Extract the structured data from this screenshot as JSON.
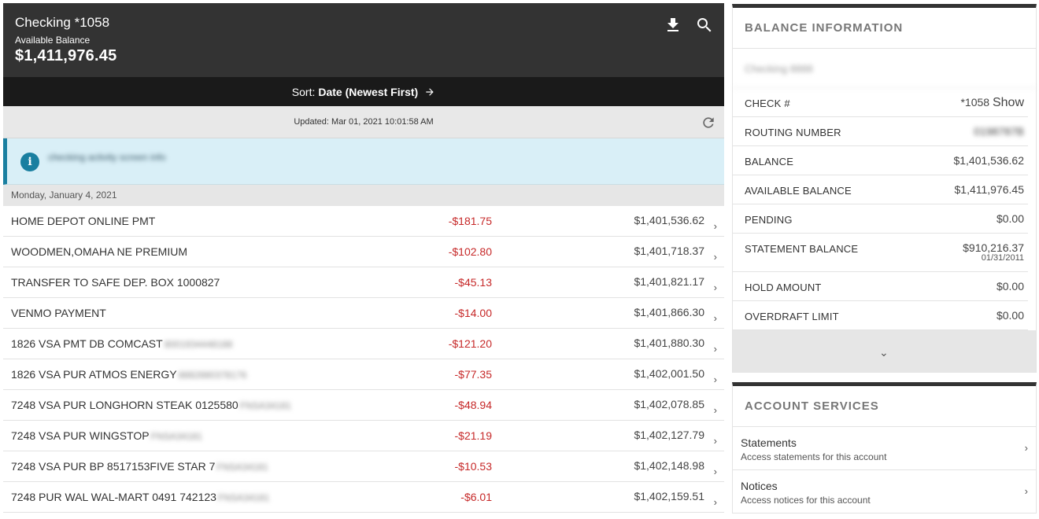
{
  "account": {
    "title": "Checking *1058",
    "available_label": "Available Balance",
    "available_amount": "$1,411,976.45"
  },
  "header_icons": [
    "download-icon",
    "search-icon"
  ],
  "sort": {
    "label": "Sort:",
    "value": "Date (Newest First)",
    "arrow": "→"
  },
  "updated": {
    "text": "Updated: Mar 01, 2021 10:01:58 AM"
  },
  "info_banner": {
    "icon": "i",
    "text": "checking activity screen info"
  },
  "date_group": "Monday, January 4, 2021",
  "transactions": [
    {
      "desc": "HOME DEPOT ONLINE PMT",
      "blur": "",
      "amount": "-$181.75",
      "balance": "$1,401,536.62"
    },
    {
      "desc": "WOODMEN,OMAHA NE PREMIUM",
      "blur": "",
      "amount": "-$102.80",
      "balance": "$1,401,718.37"
    },
    {
      "desc": "TRANSFER TO SAFE DEP. BOX 1000827",
      "blur": "",
      "amount": "-$45.13",
      "balance": "$1,401,821.17"
    },
    {
      "desc": "VENMO PAYMENT",
      "blur": "",
      "amount": "-$14.00",
      "balance": "$1,401,866.30"
    },
    {
      "desc": "1826 VSA PMT DB COMCAST",
      "blur": "8001934448188",
      "amount": "-$121.20",
      "balance": "$1,401,880.30"
    },
    {
      "desc": "1826 VSA PUR ATMOS ENERGY",
      "blur": "8882880378176",
      "amount": "-$77.35",
      "balance": "$1,402,001.50"
    },
    {
      "desc": "7248 VSA PUR LONGHORN STEAK 0125580",
      "blur": "FNSA34181",
      "amount": "-$48.94",
      "balance": "$1,402,078.85"
    },
    {
      "desc": "7248 VSA PUR WINGSTOP",
      "blur": "FNSA34181",
      "amount": "-$21.19",
      "balance": "$1,402,127.79"
    },
    {
      "desc": "7248 VSA PUR BP 8517153FIVE STAR 7",
      "blur": "FNSA34181",
      "amount": "-$10.53",
      "balance": "$1,402,148.98"
    },
    {
      "desc": "7248 PUR WAL WAL-MART 0491 742123",
      "blur": "FNSA34181",
      "amount": "-$6.01",
      "balance": "$1,402,159.51"
    }
  ],
  "balance_info": {
    "title": "BALANCE INFORMATION",
    "account_name": "Checking 8888",
    "rows": {
      "check_label": "CHECK #",
      "check_value": "*1058",
      "check_show": "Show",
      "routing_label": "ROUTING NUMBER",
      "routing_value": "0198787B",
      "balance_label": "BALANCE",
      "balance_value": "$1,401,536.62",
      "available_label": "AVAILABLE BALANCE",
      "available_value": "$1,411,976.45",
      "pending_label": "PENDING",
      "pending_value": "$0.00",
      "statement_label": "STATEMENT BALANCE",
      "statement_value": "$910,216.37",
      "statement_date": "01/31/2011",
      "hold_label": "HOLD AMOUNT",
      "hold_value": "$0.00",
      "overdraft_label": "OVERDRAFT LIMIT",
      "overdraft_value": "$0.00"
    }
  },
  "services": {
    "title": "ACCOUNT SERVICES",
    "items": [
      {
        "title": "Statements",
        "desc": "Access statements for this account"
      },
      {
        "title": "Notices",
        "desc": "Access notices for this account"
      }
    ]
  },
  "colors": {
    "header_bg": "#333333",
    "sortbar_bg": "#1a1a1a",
    "negative": "#c62828",
    "info_accent": "#1a7fa0",
    "info_bg": "#d9eff7"
  }
}
